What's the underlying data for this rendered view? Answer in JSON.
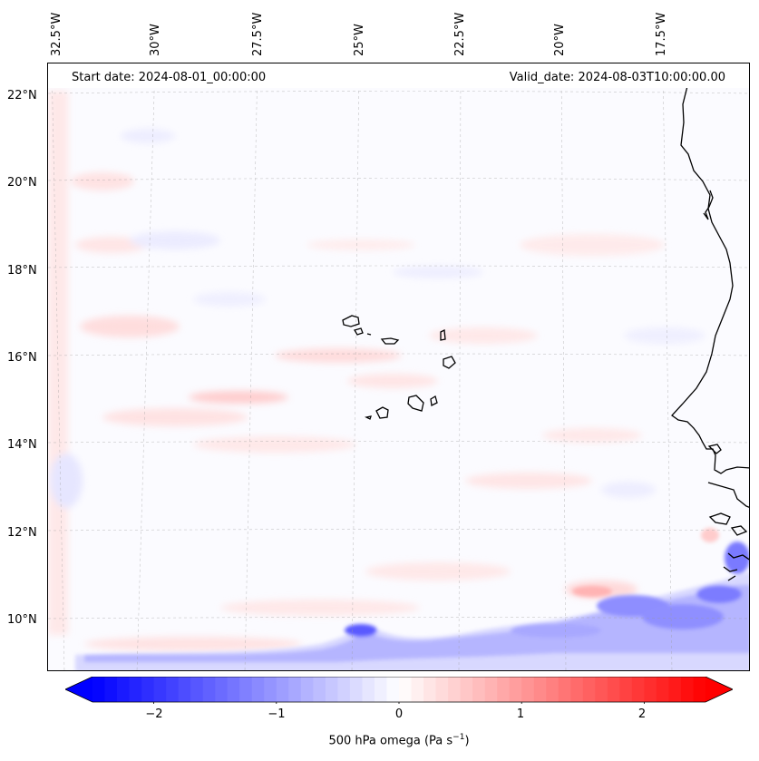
{
  "map": {
    "start_date": "Start date: 2024-08-01_00:00:00",
    "valid_date": "Valid_date: 2024-08-03T10:00:00.00",
    "longitude_labels": [
      "32.5°W",
      "30°W",
      "27.5°W",
      "25°W",
      "22.5°W",
      "20°W",
      "17.5°W"
    ],
    "latitude_labels": [
      "22°N",
      "20°N",
      "18°N",
      "16°N",
      "14°N",
      "12°N",
      "10°N"
    ],
    "gridlines": "dashed",
    "coastline_color": "#000000"
  },
  "colorbar": {
    "ticks": [
      "−2",
      "−1",
      "0",
      "1",
      "2"
    ],
    "tick_values": [
      -2,
      -1,
      0,
      1,
      2
    ],
    "range": [
      -2.5,
      2.5
    ],
    "label": "500 hPa omega (Pa s",
    "label_sup": "−1",
    "label_end": ")",
    "colormap": "bwr",
    "min_color": "#0000ff",
    "mid_color": "#ffffff",
    "max_color": "#ff0000",
    "extend": "both"
  }
}
